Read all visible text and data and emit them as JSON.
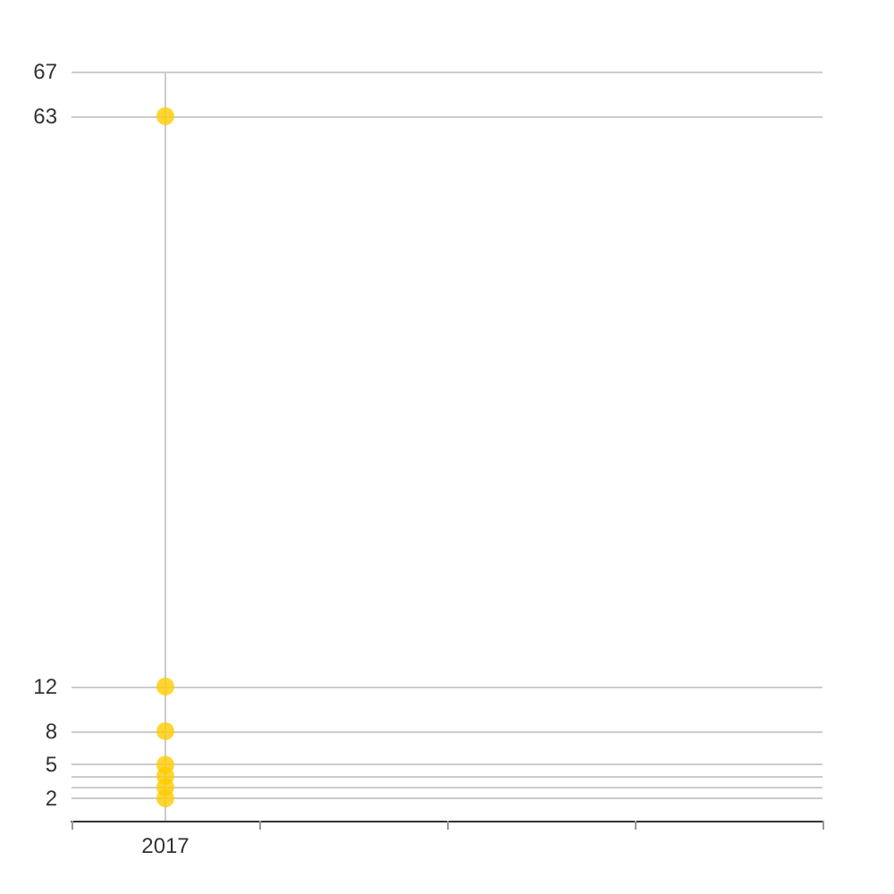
{
  "chart_data": {
    "type": "scatter",
    "categories": [
      "2017",
      null,
      null,
      null
    ],
    "series": [
      {
        "color": "#ffcc00",
        "values": [
          63,
          null,
          null,
          null
        ]
      },
      {
        "color": "#ffcc00",
        "values": [
          12,
          null,
          null,
          null
        ]
      },
      {
        "color": "#ffcc00",
        "values": [
          8,
          null,
          null,
          null
        ]
      },
      {
        "color": "#ffcc00",
        "values": [
          5,
          null,
          null,
          null
        ]
      },
      {
        "color": "#ffcc00",
        "values": [
          4,
          null,
          null,
          null
        ]
      },
      {
        "color": "#ffcc00",
        "values": [
          3,
          null,
          null,
          null
        ]
      },
      {
        "color": "#ffcc00",
        "values": [
          2,
          null,
          null,
          null
        ]
      }
    ],
    "ylim": [
      0,
      67
    ],
    "yticks": [
      {
        "value": 2,
        "label": "2"
      },
      {
        "value": 3,
        "label": null
      },
      {
        "value": 4,
        "label": null
      },
      {
        "value": 5,
        "label": "5"
      },
      {
        "value": 8,
        "label": "8"
      },
      {
        "value": 12,
        "label": "12"
      },
      {
        "value": 63,
        "label": "63"
      },
      {
        "value": 67,
        "label": "67"
      }
    ],
    "grid": true,
    "marker": "circle"
  }
}
